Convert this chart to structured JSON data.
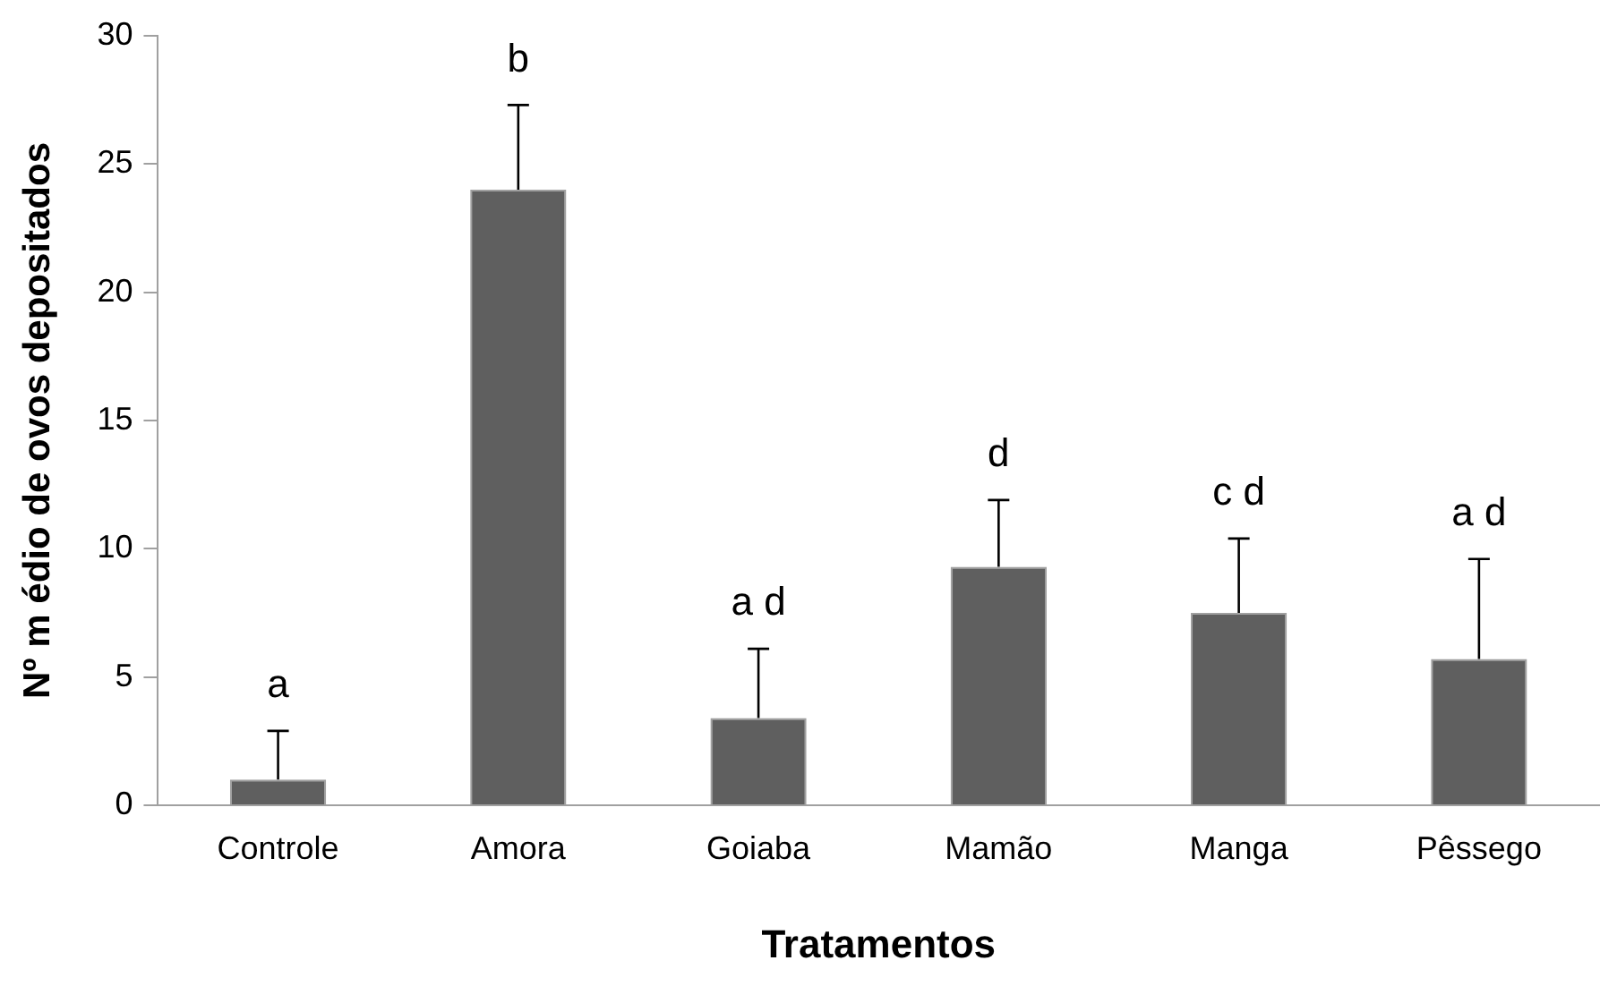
{
  "chart_data": {
    "type": "bar",
    "xlabel": "Tratamentos",
    "ylabel": "Nº m édio de ovos depositados",
    "categories": [
      "Controle",
      "Amora",
      "Goiaba",
      "Mamão",
      "Manga",
      "Pêssego"
    ],
    "values": [
      1.0,
      24.0,
      3.4,
      9.3,
      7.5,
      5.7
    ],
    "errors": [
      [
        1.0,
        2.9
      ],
      [
        24.0,
        27.3
      ],
      [
        3.4,
        6.1
      ],
      [
        9.3,
        11.9
      ],
      [
        7.5,
        10.4
      ],
      [
        5.7,
        9.6
      ]
    ],
    "color": "#5f5f5f",
    "ylim": [
      0,
      30
    ],
    "yticks": [
      0,
      5,
      10,
      15,
      20,
      25,
      30
    ],
    "grid": false,
    "legend": false,
    "annotations": [
      {
        "text": "a",
        "x": "Controle",
        "y": 2.9
      },
      {
        "text": "b",
        "x": "Amora",
        "y": 27.3
      },
      {
        "text": "a d",
        "x": "Goiaba",
        "y": 6.1
      },
      {
        "text": "d",
        "x": "Mamão",
        "y": 11.9
      },
      {
        "text": "c d",
        "x": "Manga",
        "y": 10.4
      },
      {
        "text": "a d",
        "x": "Pêssego",
        "y": 9.6
      }
    ]
  }
}
